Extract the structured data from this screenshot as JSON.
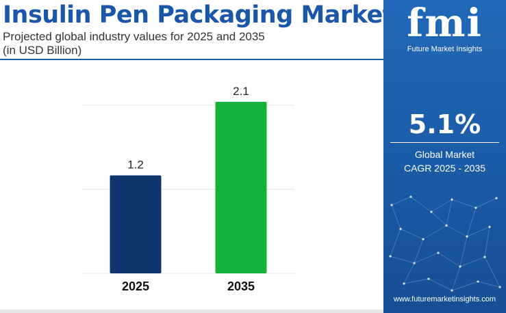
{
  "header": {
    "title": "Insulin Pen Packaging Market",
    "subtitle_line1": "Projected global industry values for 2025 and 2035",
    "subtitle_line2": "(in USD Billion)"
  },
  "chart_data": {
    "type": "bar",
    "categories": [
      "2025",
      "2035"
    ],
    "values": [
      1.2,
      2.1
    ],
    "value_labels": [
      "1.2",
      "2.1"
    ],
    "bar_colors": [
      "#0f3571",
      "#13b23a"
    ],
    "ylim": [
      0,
      2.1
    ],
    "grid": true,
    "title": "",
    "xlabel": "",
    "ylabel": ""
  },
  "sidebar": {
    "brand": "fmi",
    "brand_sub": "Future Market Insights",
    "cagr_value": "5.1%",
    "cagr_label_line1": "Global Market",
    "cagr_label_line2": "CAGR 2025 - 2035",
    "website": "www.futuremarketinsights.com",
    "background_color": "#1b5ca8"
  }
}
